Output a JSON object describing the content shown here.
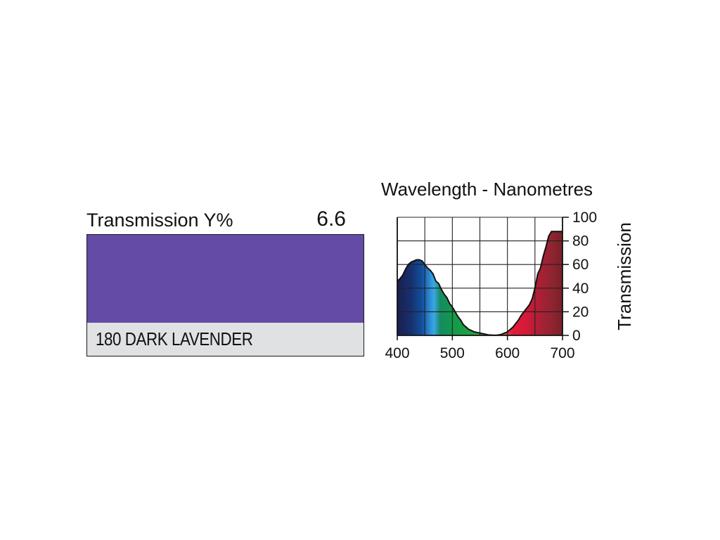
{
  "filter": {
    "transmission_label": "Transmission Y%",
    "transmission_value": "6.6",
    "name": "180 DARK LAVENDER",
    "swatch_color": "#634ba6"
  },
  "chart_data": {
    "type": "area",
    "title": "Wavelength - Nanometres",
    "xlabel": "",
    "ylabel": "Transmission",
    "xlim": [
      400,
      700
    ],
    "ylim": [
      0,
      100
    ],
    "x_ticks": [
      "400",
      "500",
      "600",
      "700"
    ],
    "y_ticks": [
      "0",
      "20",
      "40",
      "60",
      "80",
      "100"
    ],
    "grid": true,
    "fill": "visible-spectrum colors under the curve",
    "x": [
      400,
      405,
      410,
      415,
      420,
      425,
      430,
      435,
      440,
      445,
      450,
      455,
      460,
      465,
      470,
      475,
      480,
      485,
      490,
      495,
      500,
      505,
      510,
      515,
      520,
      525,
      530,
      535,
      540,
      545,
      550,
      555,
      560,
      565,
      570,
      575,
      580,
      585,
      590,
      595,
      600,
      605,
      610,
      615,
      620,
      625,
      630,
      635,
      640,
      645,
      650,
      655,
      660,
      665,
      670,
      675,
      680,
      685,
      690,
      695,
      700
    ],
    "values": [
      46,
      48,
      51,
      56,
      60,
      62,
      63,
      64,
      64,
      63,
      60,
      57,
      55,
      52,
      46,
      44,
      39,
      35,
      32,
      27,
      24,
      20,
      16,
      13,
      9,
      7,
      5,
      4,
      3,
      2.5,
      2,
      1.5,
      1,
      0.5,
      0.3,
      0.2,
      0.1,
      0.5,
      1,
      2,
      3,
      5,
      7,
      10,
      13,
      17,
      20,
      23,
      26,
      31,
      40,
      52,
      57,
      67,
      75,
      84,
      88,
      88,
      88,
      88,
      88
    ]
  }
}
